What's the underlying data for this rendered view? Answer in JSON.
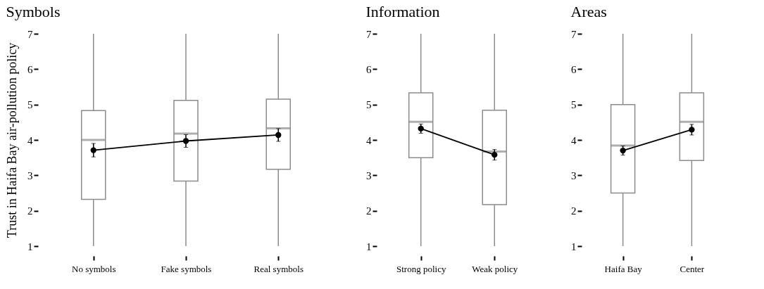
{
  "chart_data": [
    {
      "type": "box",
      "title": "Symbols",
      "ylabel": "Trust in Haifa Bay air-pollution policy",
      "categories": [
        "No symbols",
        "Fake symbols",
        "Real symbols"
      ],
      "ylim": [
        1,
        7
      ],
      "yticks": [
        1,
        2,
        3,
        4,
        5,
        6,
        7
      ],
      "grid": false,
      "series": [
        {
          "color": "#8c8c8c",
          "boxes": [
            {
              "low": 1,
              "q1": 2.32,
              "median": 4.0,
              "q3": 4.83,
              "high": 7
            },
            {
              "low": 1,
              "q1": 2.84,
              "median": 4.18,
              "q3": 5.12,
              "high": 7
            },
            {
              "low": 1,
              "q1": 3.17,
              "median": 4.33,
              "q3": 5.15,
              "high": 7
            }
          ]
        },
        {
          "type": "line",
          "color": "#000000",
          "marker": "circle",
          "values": [
            3.71,
            3.97,
            4.14
          ],
          "errors": [
            0.19,
            0.18,
            0.18
          ]
        }
      ]
    },
    {
      "type": "box",
      "title": "Information",
      "categories": [
        "Strong policy",
        "Weak policy"
      ],
      "ylim": [
        1,
        7
      ],
      "yticks": [
        1,
        2,
        3,
        4,
        5,
        6,
        7
      ],
      "grid": false,
      "series": [
        {
          "color": "#8c8c8c",
          "boxes": [
            {
              "low": 1,
              "q1": 3.5,
              "median": 4.51,
              "q3": 5.33,
              "high": 7
            },
            {
              "low": 1,
              "q1": 2.17,
              "median": 3.67,
              "q3": 4.84,
              "high": 7
            }
          ]
        },
        {
          "type": "line",
          "color": "#000000",
          "marker": "circle",
          "values": [
            4.32,
            3.58
          ],
          "errors": [
            0.13,
            0.15
          ]
        }
      ]
    },
    {
      "type": "box",
      "title": "Areas",
      "categories": [
        "Haifa Bay",
        "Center"
      ],
      "ylim": [
        1,
        7
      ],
      "yticks": [
        1,
        2,
        3,
        4,
        5,
        6,
        7
      ],
      "grid": false,
      "series": [
        {
          "color": "#8c8c8c",
          "boxes": [
            {
              "low": 1,
              "q1": 2.5,
              "median": 3.84,
              "q3": 5.0,
              "high": 7
            },
            {
              "low": 1,
              "q1": 3.42,
              "median": 4.51,
              "q3": 5.33,
              "high": 7
            }
          ]
        },
        {
          "type": "line",
          "color": "#000000",
          "marker": "circle",
          "values": [
            3.7,
            4.29
          ],
          "errors": [
            0.13,
            0.15
          ]
        }
      ]
    }
  ]
}
